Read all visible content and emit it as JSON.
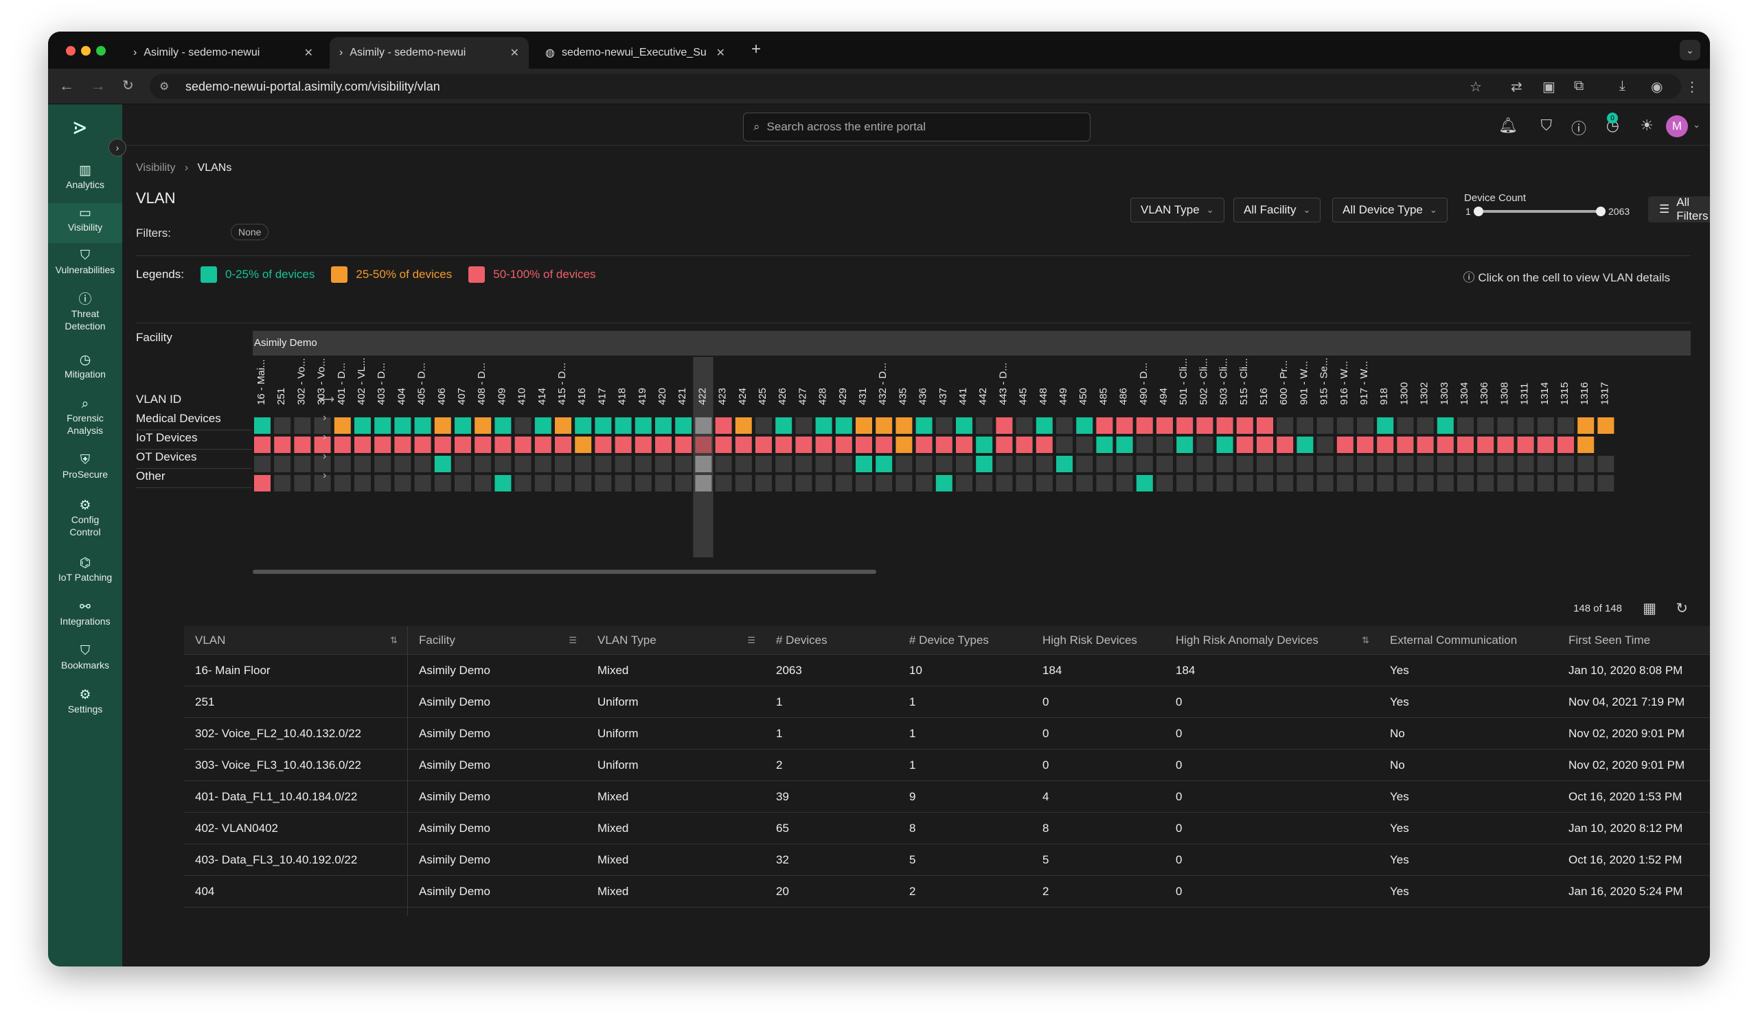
{
  "browser": {
    "tabs": [
      {
        "title": "Asimily - sedemo-newui",
        "active": false
      },
      {
        "title": "Asimily - sedemo-newui",
        "active": true
      },
      {
        "title": "sedemo-newui_Executive_Su",
        "active": false
      }
    ],
    "url": "sedemo-newui-portal.asimily.com/visibility/vlan"
  },
  "sidebar": {
    "items": [
      {
        "label": "Analytics",
        "icon": "bar-chart-icon"
      },
      {
        "label": "Visibility",
        "icon": "monitor-icon"
      },
      {
        "label": "Vulnerabilities",
        "icon": "shield-alert-icon"
      },
      {
        "label": "Threat Detection",
        "icon": "alert-circle-icon"
      },
      {
        "label": "Mitigation",
        "icon": "clock-icon"
      },
      {
        "label": "Forensic Analysis",
        "icon": "magnifier-icon"
      },
      {
        "label": "ProSecure",
        "icon": "shield-check-icon"
      },
      {
        "label": "Config Control",
        "icon": "gear-icon"
      },
      {
        "label": "IoT Patching",
        "icon": "patch-icon"
      },
      {
        "label": "Integrations",
        "icon": "link-icon"
      },
      {
        "label": "Bookmarks",
        "icon": "bookmark-icon"
      },
      {
        "label": "Settings",
        "icon": "settings-icon"
      }
    ]
  },
  "search": {
    "placeholder": "Search across the entire portal"
  },
  "header": {
    "notification_badge": "0",
    "avatar_initial": "M"
  },
  "breadcrumb": {
    "parent": "Visibility",
    "current": "VLANs"
  },
  "page": {
    "title": "VLAN",
    "filters_label": "Filters:",
    "filters_value": "None"
  },
  "controls": {
    "vlan_type": "VLAN Type",
    "facility": "All Facility",
    "device_type": "All Device Type",
    "device_count_label": "Device Count",
    "device_count_min": "1",
    "device_count_max": "2063",
    "all_filters": "All Filters"
  },
  "legend": {
    "label": "Legends:",
    "items": [
      {
        "text": "0-25% of devices",
        "color": "#14c39a"
      },
      {
        "text": "25-50% of devices",
        "color": "#f39a2e"
      },
      {
        "text": "50-100% of devices",
        "color": "#ef5f6a"
      }
    ],
    "hint": "Click on the cell to view VLAN details"
  },
  "heatmap": {
    "facility_label": "Facility",
    "vlan_id_label": "VLAN ID",
    "facility": "Asimily Demo",
    "highlighted_column": "422",
    "columns": [
      "16 - Mai...",
      "251",
      "302 - Vo...",
      "303 - Vo...",
      "401 - D...",
      "402 - VL...",
      "403 - D...",
      "404",
      "405 - D...",
      "406",
      "407",
      "408 - D...",
      "409",
      "410",
      "414",
      "415 - D...",
      "416",
      "417",
      "418",
      "419",
      "420",
      "421",
      "422",
      "423",
      "424",
      "425",
      "426",
      "427",
      "428",
      "429",
      "431",
      "432 - D...",
      "435",
      "436",
      "437",
      "441",
      "442",
      "443 - D...",
      "445",
      "448",
      "449",
      "450",
      "485",
      "486",
      "490 - D...",
      "494",
      "501 - Cli...",
      "502 - Cli...",
      "503 - Cli...",
      "515 - Cli...",
      "516",
      "600 - Pr...",
      "901 - W...",
      "915 - Se...",
      "916 - W...",
      "917 - W...",
      "918",
      "1300",
      "1302",
      "1303",
      "1304",
      "1306",
      "1308",
      "1311",
      "1314",
      "1315",
      "1316",
      "1317"
    ],
    "rows": [
      {
        "label": "Medical Devices",
        "cells": "gnnnoggggogogngoggggggnrongnggooogngnrngngrrrrrrrrrnnnnngnngnnnnnnoo"
      },
      {
        "label": "IoT Devices",
        "cells": "rrrrrrrrrrrrrrrrorrrrrrrrrrrrrrrorrrgrrrnnggnngngrrrgnrrrrrrrrrrrro"
      },
      {
        "label": "OT Devices",
        "cells": "nnnnnnnnngnnnnnnnnnnnnnnnnnnnnggnnnngnnngnnnnnnnnnnnnnnnnnnnnnnnnnnn"
      },
      {
        "label": "Other",
        "cells": "rnnnnnnnnnnngnnnnnnnnnnnnnnnnnnnnngnnnnnnnnngnnnnnnnnnnnnnnnnnnnnnnn"
      }
    ],
    "colors": {
      "g": "#14c39a",
      "o": "#f39a2e",
      "r": "#ef5f6a",
      "n": "#3a3a3a",
      "highlight": "#8a8a8a"
    }
  },
  "table": {
    "count_text": "148 of 148",
    "columns": [
      "VLAN",
      "Facility",
      "VLAN Type",
      "# Devices",
      "# Device Types",
      "High Risk Devices",
      "High Risk Anomaly Devices",
      "External Communication",
      "First Seen Time"
    ],
    "rows": [
      [
        "16- Main Floor",
        "Asimily Demo",
        "Mixed",
        "2063",
        "10",
        "184",
        "184",
        "Yes",
        "Jan 10, 2020 8:08 PM"
      ],
      [
        "251",
        "Asimily Demo",
        "Uniform",
        "1",
        "1",
        "0",
        "0",
        "Yes",
        "Nov 04, 2021 7:19 PM"
      ],
      [
        "302- Voice_FL2_10.40.132.0/22",
        "Asimily Demo",
        "Uniform",
        "1",
        "1",
        "0",
        "0",
        "No",
        "Nov 02, 2020 9:01 PM"
      ],
      [
        "303- Voice_FL3_10.40.136.0/22",
        "Asimily Demo",
        "Uniform",
        "2",
        "1",
        "0",
        "0",
        "No",
        "Nov 02, 2020 9:01 PM"
      ],
      [
        "401- Data_FL1_10.40.184.0/22",
        "Asimily Demo",
        "Mixed",
        "39",
        "9",
        "4",
        "0",
        "Yes",
        "Oct 16, 2020 1:53 PM"
      ],
      [
        "402- VLAN0402",
        "Asimily Demo",
        "Mixed",
        "65",
        "8",
        "8",
        "0",
        "Yes",
        "Jan 10, 2020 8:12 PM"
      ],
      [
        "403- Data_FL3_10.40.192.0/22",
        "Asimily Demo",
        "Mixed",
        "32",
        "5",
        "5",
        "0",
        "Yes",
        "Oct 16, 2020 1:52 PM"
      ],
      [
        "404",
        "Asimily Demo",
        "Mixed",
        "20",
        "2",
        "2",
        "0",
        "Yes",
        "Jan 16, 2020 5:24 PM"
      ]
    ]
  }
}
